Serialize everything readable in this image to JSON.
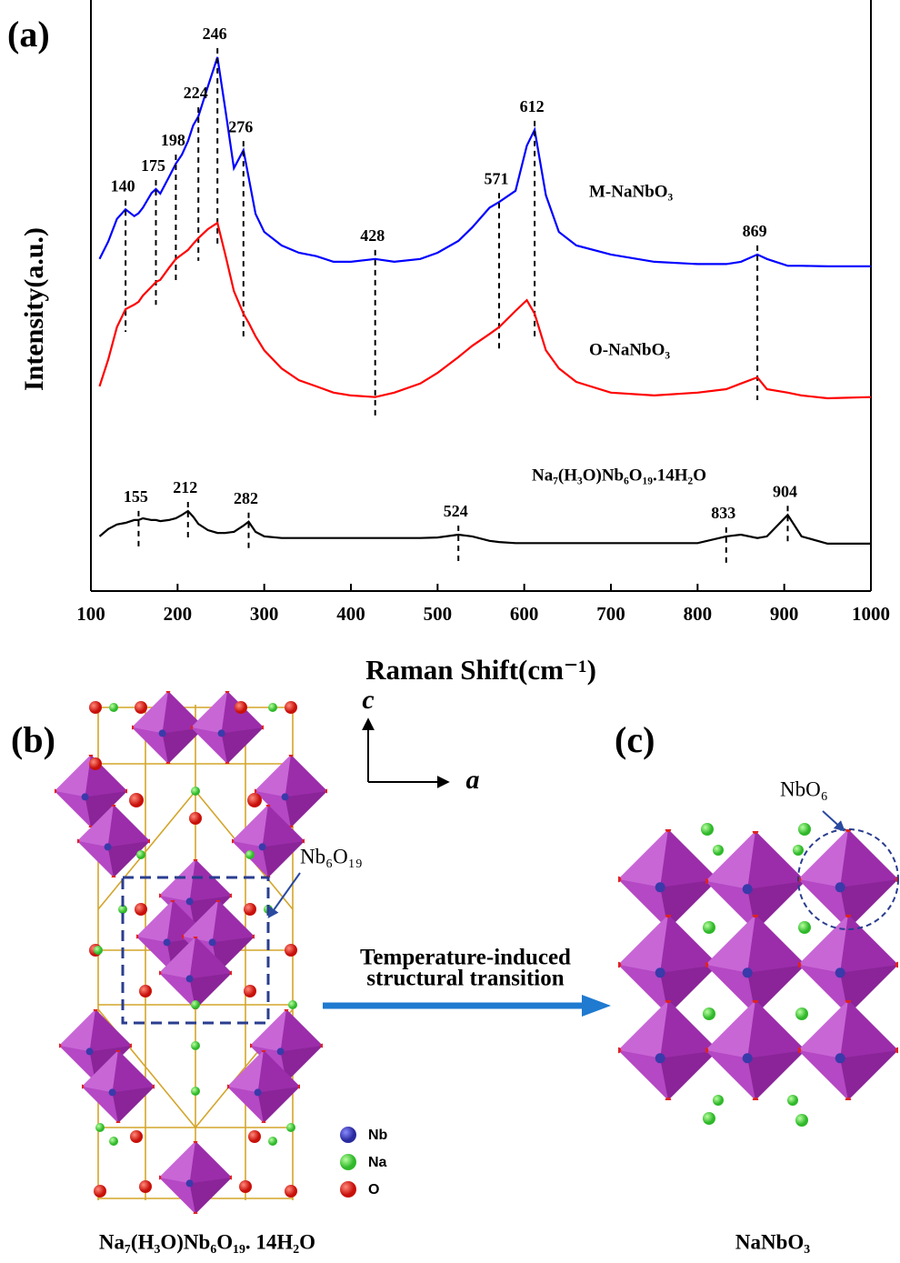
{
  "chart_data": {
    "type": "line",
    "panel_label": "(a)",
    "x_label": "Raman Shift(cm⁻¹)",
    "y_label": "Intensity(a.u.)",
    "x": [
      110,
      120,
      130,
      140,
      150,
      155,
      160,
      170,
      175,
      180,
      190,
      198,
      205,
      212,
      218,
      224,
      235,
      246,
      255,
      265,
      276,
      282,
      290,
      300,
      320,
      340,
      360,
      380,
      400,
      428,
      450,
      480,
      500,
      524,
      540,
      560,
      571,
      590,
      603,
      612,
      625,
      640,
      660,
      700,
      750,
      800,
      833,
      850,
      869,
      880,
      904,
      920,
      950,
      1000
    ],
    "series": [
      {
        "name": "M-NaNbO₃",
        "color": "#0000ff",
        "peaks": [
          140,
          175,
          198,
          224,
          246,
          276,
          428,
          571,
          612,
          869
        ],
        "values": [
          58.9,
          62,
          66,
          67.7,
          66.5,
          67,
          68,
          70.6,
          71.3,
          70.5,
          73.4,
          75.8,
          77.4,
          79.8,
          82.6,
          84.2,
          89.5,
          94.7,
          85.5,
          75,
          78.2,
          73.4,
          66.9,
          63.7,
          61.3,
          60,
          59.4,
          58.4,
          58.4,
          58.9,
          58.4,
          58.9,
          60,
          62.1,
          64.5,
          68,
          69,
          71,
          79,
          81.8,
          70.2,
          63.7,
          61.3,
          59.7,
          58.4,
          58,
          58,
          58.4,
          59.7,
          58.9,
          57.7,
          57.7,
          57.6,
          57.6
        ]
      },
      {
        "name": "O-NaNbO₃",
        "color": "#ff0000",
        "values": [
          36.3,
          41.1,
          46.8,
          50,
          50.8,
          51.3,
          52.4,
          54,
          54.8,
          55.2,
          57.3,
          58.9,
          59.7,
          60.5,
          61.6,
          62.6,
          64.2,
          65.3,
          59.7,
          53.2,
          49.2,
          47.6,
          45.2,
          42.7,
          39.5,
          37.4,
          36.3,
          35.2,
          34.7,
          34.4,
          35.2,
          36.8,
          38.7,
          41.5,
          43.5,
          45.6,
          46.8,
          49.7,
          51.6,
          49.2,
          42.7,
          39.5,
          37.1,
          35.2,
          34.7,
          35.2,
          35.8,
          36.8,
          37.9,
          35.8,
          35.2,
          34.7,
          34.2,
          34.4
        ]
      },
      {
        "name": "Na₇(H₃O)Nb₆O₁₉.14H₂O",
        "color": "#000000",
        "peaks": [
          155,
          212,
          282,
          524,
          833,
          904
        ],
        "values": [
          9.7,
          11,
          11.8,
          12.1,
          12.6,
          12.6,
          12.9,
          12.6,
          12.6,
          12.4,
          12.6,
          12.9,
          13.5,
          14.2,
          13.2,
          11.9,
          10.8,
          10.3,
          10.3,
          10.5,
          11.6,
          12.3,
          10.5,
          9.7,
          9.4,
          9.4,
          9.4,
          9.4,
          9.4,
          9.4,
          9.4,
          9.4,
          9.5,
          10,
          9.7,
          8.9,
          8.7,
          8.5,
          8.5,
          8.5,
          8.5,
          8.5,
          8.5,
          8.5,
          8.5,
          8.5,
          9.7,
          10,
          9.4,
          9.7,
          13.5,
          9.7,
          8.4,
          8.4
        ]
      }
    ],
    "xlim": [
      100,
      1000
    ],
    "xticks": [
      100,
      200,
      300,
      400,
      500,
      600,
      700,
      800,
      900,
      1000
    ],
    "ylim": [
      0,
      100
    ],
    "yticks": []
  },
  "diagram": {
    "panel_b": {
      "label": "(b)",
      "cluster_label": "Nb₆O₁₉",
      "legend": [
        "Nb",
        "Na",
        "O"
      ],
      "caption": "Na₇(H₃O)Nb₆O₁₉. 14H₂O"
    },
    "axes": {
      "vertical": "c",
      "horizontal": "a"
    },
    "transition": [
      "Temperature-induced",
      "structural transition"
    ],
    "panel_c": {
      "label": "(c)",
      "unit_label": "NbO₆",
      "caption": "NaNbO₃"
    }
  }
}
